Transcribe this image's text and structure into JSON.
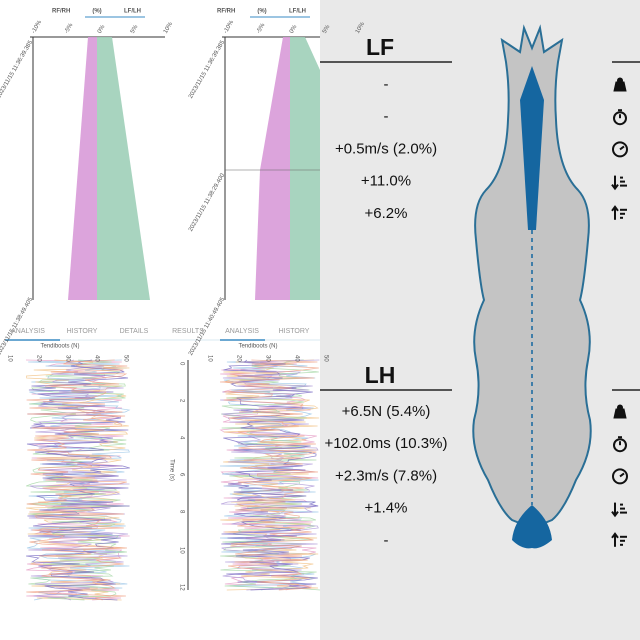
{
  "left": {
    "panels": [
      {
        "header": [
          "RF/RH",
          "(%)",
          "LF/LH"
        ],
        "xticks": [
          "-10%",
          "-5%",
          "0%",
          "5%",
          "10%"
        ],
        "dates": [
          "2023/11/15 11:36:39.385",
          "2023/11/15 11:38:49.405"
        ]
      },
      {
        "header": [
          "RF/RH",
          "(%)",
          "LF/LH"
        ],
        "xticks": [
          "-10%",
          "-5%",
          "0%",
          "5%",
          "10%"
        ],
        "dates": [
          "2023/11/15 11:36:39.385",
          "2023/11/15 11:38:29.400",
          "2023/11/15 11:40:49.405"
        ]
      }
    ],
    "tabs": [
      "ANALYSIS",
      "HISTORY",
      "DETAILS",
      "RESULTS",
      "ANALYSIS",
      "HISTORY"
    ],
    "plot_title": "Tendiboots (N)",
    "plot_ticks": [
      "10",
      "20",
      "30",
      "40",
      "50"
    ],
    "time_label": "Time (s)",
    "time_ticks": [
      "0",
      "2",
      "4",
      "6",
      "8",
      "10",
      "12"
    ]
  },
  "right": {
    "front": {
      "label": "LF",
      "values": [
        "-",
        "-",
        "+0.5m/s (2.0%)",
        "+11.0%",
        "+6.2%"
      ]
    },
    "hind": {
      "label": "LH",
      "values": [
        "+6.5N (5.4%)",
        "+102.0ms (10.3%)",
        "+2.3m/s (7.8%)",
        "+1.4%",
        "-"
      ]
    }
  }
}
